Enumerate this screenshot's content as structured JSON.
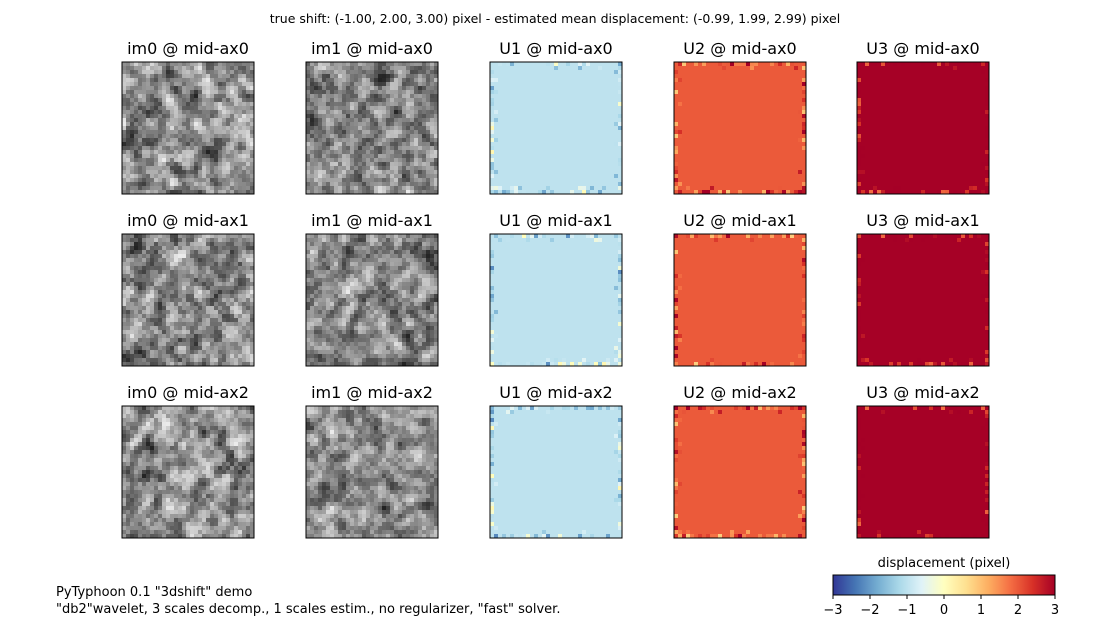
{
  "suptitle": "true shift: (-1.00, 2.00, 3.00) pixel - estimated mean displacement: (-0.99, 1.99, 2.99) pixel",
  "footnote": {
    "line1": "PyTyphoon 0.1 \"3dshift\" demo",
    "line2": "\"db2\"wavelet, 3 scales decomp., 1 scales estim., no regularizer, \"fast\" solver."
  },
  "colorbar": {
    "label": "displacement (pixel)",
    "cmap": "RdYlBu_r",
    "range": [
      -3,
      3
    ],
    "ticks": [
      "−3",
      "−2",
      "−1",
      "0",
      "1",
      "2",
      "3"
    ]
  },
  "chart_data": {
    "type": "heatmap",
    "rows": [
      "mid-ax0",
      "mid-ax1",
      "mid-ax2"
    ],
    "columns": [
      "im0",
      "im1",
      "U1",
      "U2",
      "U3"
    ],
    "panel_titles": [
      [
        "im0 @ mid-ax0",
        "im1 @ mid-ax0",
        "U1 @ mid-ax0",
        "U2 @ mid-ax0",
        "U3 @ mid-ax0"
      ],
      [
        "im0 @ mid-ax1",
        "im1 @ mid-ax1",
        "U1 @ mid-ax1",
        "U2 @ mid-ax1",
        "U3 @ mid-ax1"
      ],
      [
        "im0 @ mid-ax2",
        "im1 @ mid-ax2",
        "U1 @ mid-ax2",
        "U2 @ mid-ax2",
        "U3 @ mid-ax2"
      ]
    ],
    "true_shift": [
      -1.0,
      2.0,
      3.0
    ],
    "estimated_mean_displacement": [
      -0.99,
      1.99,
      2.99
    ],
    "image_colormap": "gray",
    "displacement_colormap": "RdYlBu_r",
    "value_range": [
      -3,
      3
    ]
  }
}
